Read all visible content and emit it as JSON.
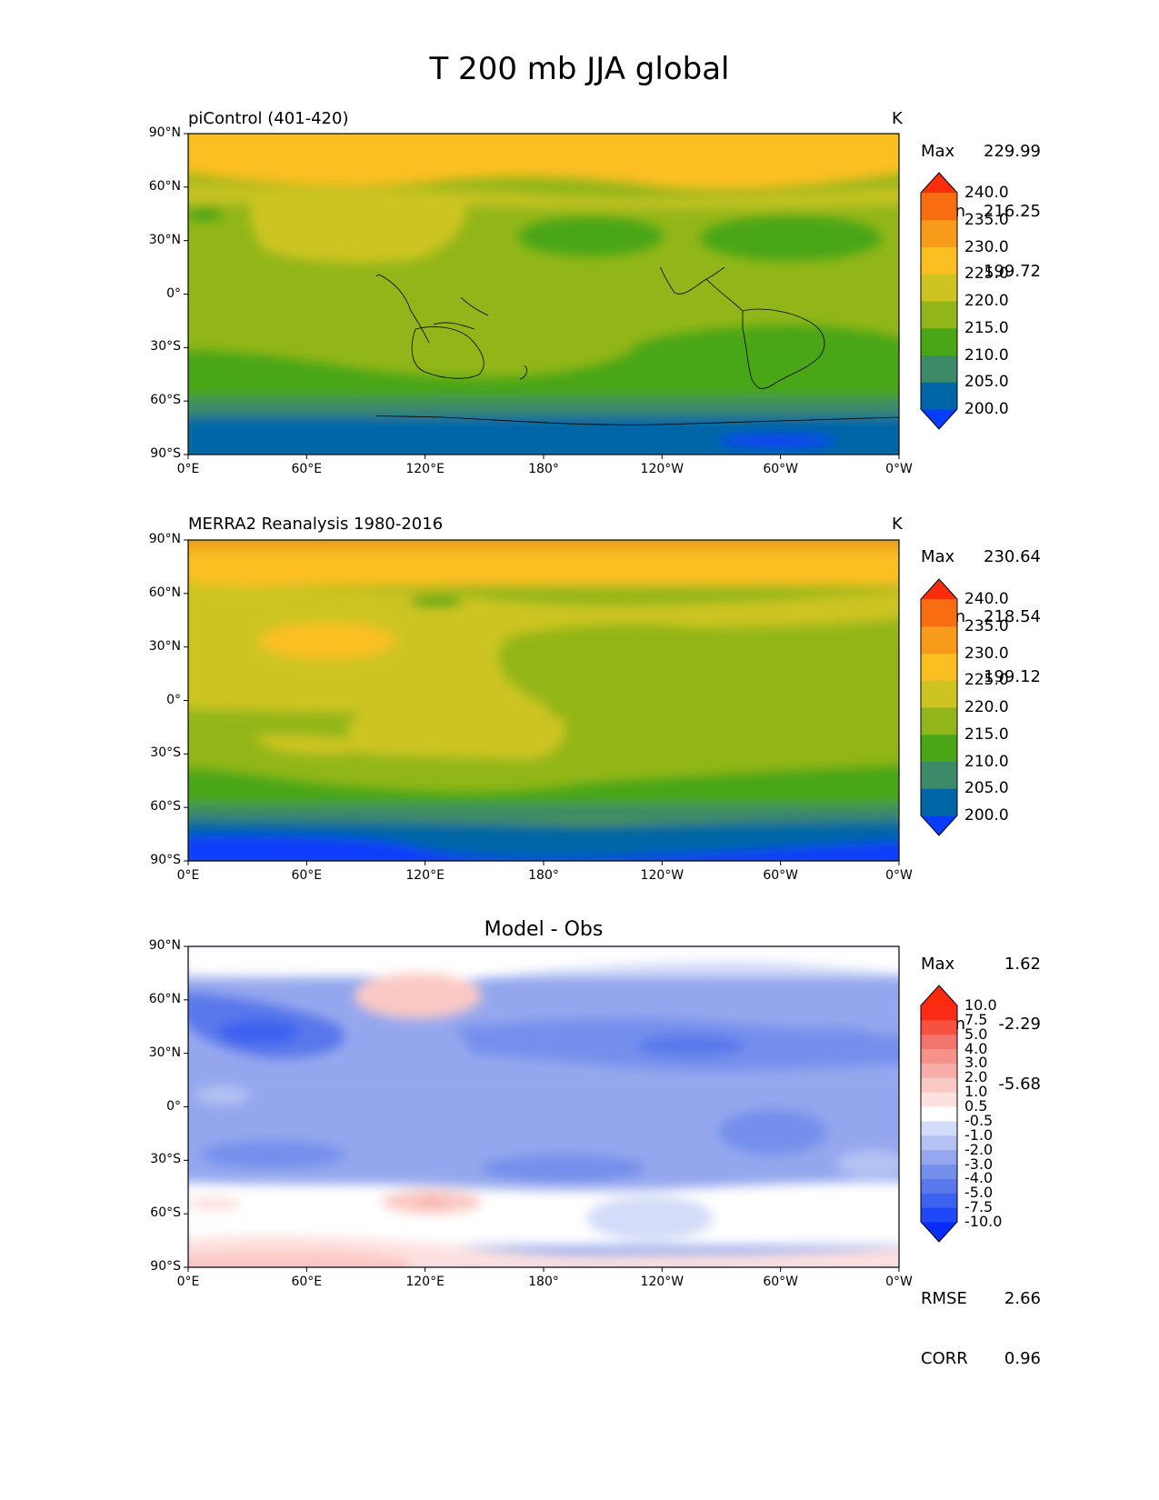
{
  "title": "T 200 mb JJA global",
  "panels": [
    {
      "name": "model",
      "title": "piControl (401-420)",
      "unit": "K",
      "stats": {
        "max_label": "Max",
        "max": "229.99",
        "mean_label": "Mean",
        "mean": "216.25",
        "min_label": "Min",
        "min": "199.72"
      },
      "colorbar": {
        "levels": [
          "200.0",
          "205.0",
          "210.0",
          "215.0",
          "220.0",
          "225.0",
          "230.0",
          "235.0",
          "240.0"
        ],
        "colors": [
          "#0a3dfb",
          "#0066a6",
          "#3d8a68",
          "#4aa617",
          "#92b619",
          "#cdc421",
          "#fbbf22",
          "#f99b1a",
          "#f96d12",
          "#f92d0a"
        ]
      }
    },
    {
      "name": "obs",
      "title": "MERRA2 Reanalysis 1980-2016",
      "unit": "K",
      "stats": {
        "max_label": "Max",
        "max": "230.64",
        "mean_label": "Mean",
        "mean": "218.54",
        "min_label": "Min",
        "min": "199.12"
      },
      "colorbar": {
        "levels": [
          "200.0",
          "205.0",
          "210.0",
          "215.0",
          "220.0",
          "225.0",
          "230.0",
          "235.0",
          "240.0"
        ],
        "colors": [
          "#0a3dfb",
          "#0066a6",
          "#3d8a68",
          "#4aa617",
          "#92b619",
          "#cdc421",
          "#fbbf22",
          "#f99b1a",
          "#f96d12",
          "#f92d0a"
        ]
      }
    },
    {
      "name": "diff",
      "title": "Model - Obs",
      "unit": "",
      "stats": {
        "max_label": "Max",
        "max": "1.62",
        "mean_label": "Mean",
        "mean": "-2.29",
        "min_label": "Min",
        "min": "-5.68"
      },
      "extra": {
        "rmse_label": "RMSE",
        "rmse": "2.66",
        "corr_label": "CORR",
        "corr": "0.96"
      },
      "colorbar": {
        "levels": [
          "-10.0",
          "-7.5",
          "-5.0",
          "-4.0",
          "-3.0",
          "-2.0",
          "-1.0",
          "-0.5",
          "0.5",
          "1.0",
          "2.0",
          "3.0",
          "4.0",
          "5.0",
          "7.5",
          "10.0"
        ],
        "colors": [
          "#0a2cfb",
          "#1f48f8",
          "#3c62f0",
          "#5a78eb",
          "#7590ec",
          "#94a7ee",
          "#b4c2f3",
          "#d3dcf8",
          "#ffffff",
          "#fde1df",
          "#fbc9c4",
          "#f8aea8",
          "#f5938b",
          "#f3746d",
          "#f6523f",
          "#fa2c18",
          "#fb2a0a"
        ]
      }
    }
  ],
  "axes": {
    "lat_ticks": [
      "90°N",
      "60°N",
      "30°N",
      "0°",
      "30°S",
      "60°S",
      "90°S"
    ],
    "lon_ticks": [
      "0°E",
      "60°E",
      "120°E",
      "180°",
      "120°W",
      "60°W",
      "0°W"
    ]
  }
}
